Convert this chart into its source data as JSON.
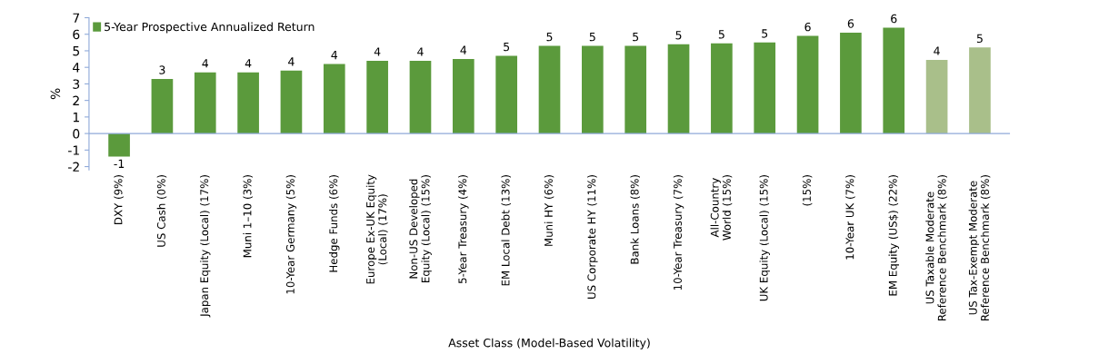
{
  "chart_data": {
    "type": "bar",
    "xlabel": "Asset Class (Model-Based Volatility)",
    "ylabel": "%",
    "categories": [
      "DXY (9%)",
      "US Cash (0%)",
      "Japan Equity (Local) (17%)",
      "Muni 1–10 (3%)",
      "10-Year Germany (5%)",
      "Hedge Funds (6%)",
      "Europe Ex-UK Equity\n(Local) (17%)",
      "Non-US Developed\nEquity (Local) (15%)",
      "5-Year Treasury (4%)",
      "EM Local Debt (13%)",
      "Muni HY (6%)",
      "US Corporate HY (11%)",
      "Bank Loans (8%)",
      "10-Year Treasury (7%)",
      "All-Country\nWorld (15%)",
      "UK Equity (Local) (15%)",
      "(15%)",
      "10-Year UK (7%)",
      "EM Equity (US$) (22%)",
      "US Taxable Moderate\nReference Benchmark (8%)",
      "US Tax-Exempt Moderate\nReference Benchmark (8%)"
    ],
    "series": [
      {
        "name": "5-Year Prospective Annualized Return",
        "color": "#5b9a3c",
        "colors": [
          "#5b9a3c",
          "#5b9a3c",
          "#5b9a3c",
          "#5b9a3c",
          "#5b9a3c",
          "#5b9a3c",
          "#5b9a3c",
          "#5b9a3c",
          "#5b9a3c",
          "#5b9a3c",
          "#5b9a3c",
          "#5b9a3c",
          "#5b9a3c",
          "#5b9a3c",
          "#5b9a3c",
          "#5b9a3c",
          "#5b9a3c",
          "#5b9a3c",
          "#5b9a3c",
          "#a9bf8a",
          "#a9bf8a"
        ],
        "values": [
          -1.4,
          3.3,
          3.7,
          3.7,
          3.8,
          4.2,
          4.4,
          4.4,
          4.5,
          4.7,
          5.3,
          5.3,
          5.3,
          5.4,
          5.45,
          5.5,
          5.9,
          6.1,
          6.4,
          4.45,
          5.2
        ],
        "value_labels": [
          "-1",
          "3",
          "4",
          "4",
          "4",
          "4",
          "4",
          "4",
          "4",
          "5",
          "5",
          "5",
          "5",
          "5",
          "5",
          "5",
          "6",
          "6",
          "6",
          "4",
          "5"
        ]
      }
    ],
    "ylim": [
      -2.2,
      7
    ],
    "yticks": [
      -2,
      -1,
      0,
      1,
      2,
      3,
      4,
      5,
      6,
      7
    ],
    "ref_lines": [
      {
        "axis": "y",
        "value": 0,
        "color": "#8fa9d9",
        "line_style": "solid"
      }
    ],
    "grid": false,
    "legend": "top left"
  }
}
